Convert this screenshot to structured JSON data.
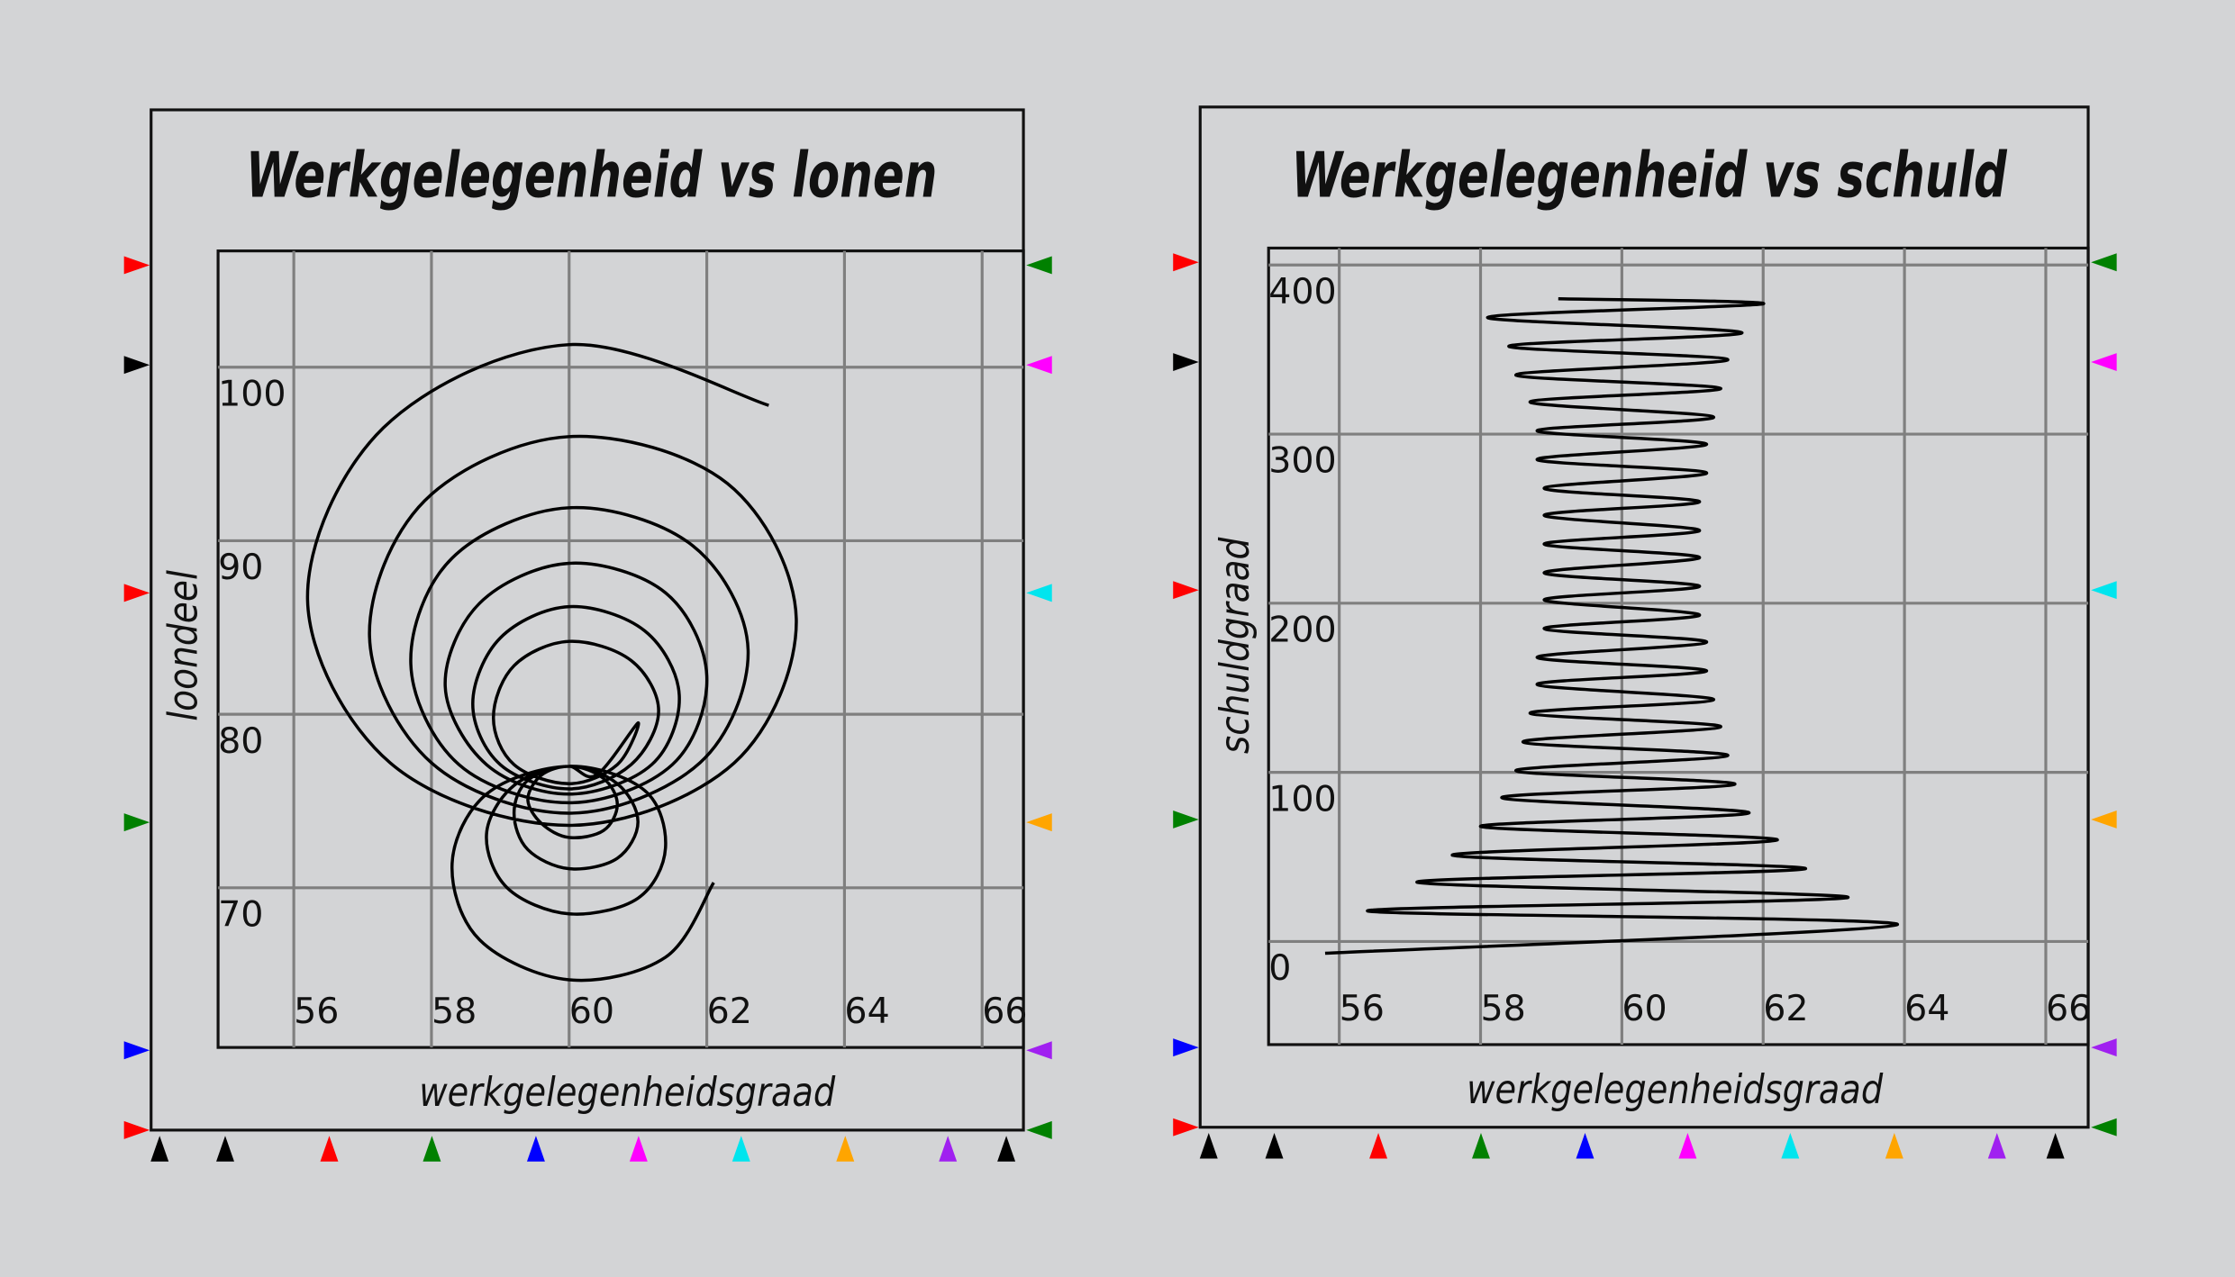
{
  "chart_data": [
    {
      "type": "line",
      "title": "Werkgelegenheid vs lonen",
      "xlabel": "werkgelegenheidsgraad",
      "ylabel": "loondeel",
      "x": [
        62.9,
        60,
        57.3,
        56.2,
        57.4,
        60,
        62.4,
        63.3,
        62.3,
        60,
        57.9,
        57.1,
        58.0,
        60,
        61.9,
        62.6,
        61.8,
        60,
        58.3,
        57.7,
        58.4,
        60,
        61.5,
        62.0,
        61.4,
        60,
        58.7,
        58.2,
        58.8,
        60,
        61.2,
        61.6,
        61.1,
        60,
        59.0,
        58.6,
        59.0,
        60,
        60.9,
        61.3,
        60.9,
        60,
        59.2,
        58.9,
        59.2,
        60,
        60.7,
        61.0,
        60.4,
        60,
        59.6,
        59.4,
        59.6,
        60,
        60.5,
        60.7,
        60.5,
        60,
        59.4,
        59.2,
        59.4,
        60,
        60.7,
        61.0,
        60.7,
        60,
        59.2,
        58.8,
        59.1,
        60,
        61.0,
        61.4,
        61.1,
        60,
        58.8,
        58.3,
        58.7,
        60,
        61.4,
        62.1
      ],
      "series": [
        {
          "color": "#000000",
          "values": [
            97.8,
            101.3,
            96.5,
            86.6,
            77.2,
            73.6,
            77.2,
            85.5,
            93.3,
            96.0,
            92.3,
            84.5,
            77.2,
            74.3,
            77.2,
            83.7,
            89.7,
            91.9,
            89.0,
            82.9,
            77.1,
            74.9,
            77.1,
            82.2,
            87.0,
            88.7,
            86.4,
            81.6,
            77.1,
            75.4,
            77.1,
            81.1,
            84.8,
            86.2,
            84.4,
            80.6,
            77.1,
            75.7,
            77.1,
            80.2,
            83.1,
            84.2,
            82.8,
            79.8,
            77.1,
            76.0,
            77.1,
            79.5,
            76.5,
            77.0,
            76.5,
            75.1,
            73.7,
            72.9,
            73.3,
            74.8,
            76.3,
            77.0,
            76.2,
            74.3,
            72.2,
            71.1,
            71.7,
            73.8,
            76.0,
            77.0,
            75.9,
            73.1,
            70.0,
            68.5,
            69.4,
            72.3,
            75.6,
            77.0,
            75.4,
            71.4,
            67.0,
            64.7,
            66.0,
            70.3
          ]
        }
      ],
      "xlim": [
        54.9,
        66.6
      ],
      "ylim": [
        60.8,
        106.7
      ],
      "xticks": [
        56,
        58,
        60,
        62,
        64,
        66
      ],
      "yticks": [
        70,
        80,
        90,
        100
      ],
      "grid": true
    },
    {
      "type": "line",
      "title": "Werkgelegenheid vs schuld",
      "xlabel": "werkgelegenheidsgraad",
      "ylabel": "schuldgraad",
      "x": [
        59.1,
        62.0,
        58.1,
        61.7,
        58.4,
        61.5,
        58.5,
        61.4,
        58.7,
        61.3,
        58.8,
        61.2,
        58.8,
        61.2,
        58.9,
        61.1,
        58.9,
        61.1,
        58.9,
        61.1,
        58.9,
        61.1,
        58.9,
        61.1,
        58.9,
        61.2,
        58.8,
        61.2,
        58.8,
        61.3,
        58.7,
        61.4,
        58.6,
        61.5,
        58.5,
        61.6,
        58.3,
        61.8,
        58.0,
        62.2,
        57.6,
        62.6,
        57.1,
        63.2,
        56.4,
        63.9,
        55.8
      ],
      "series": [
        {
          "color": "#000000",
          "values": [
            380,
            377,
            369,
            360,
            352,
            344,
            335,
            327,
            319,
            310,
            302,
            294,
            285,
            277,
            268,
            260,
            252,
            243,
            235,
            227,
            218,
            210,
            202,
            193,
            185,
            177,
            168,
            160,
            152,
            143,
            135,
            127,
            118,
            110,
            101,
            93,
            85,
            76,
            68,
            60,
            51,
            43,
            35,
            26,
            18,
            10,
            -7
          ]
        }
      ],
      "xlim": [
        55.0,
        66.6
      ],
      "ylim": [
        -61,
        410
      ],
      "xticks": [
        56,
        58,
        60,
        62,
        64,
        66
      ],
      "yticks": [
        0,
        100,
        200,
        300,
        400
      ],
      "grid": true
    }
  ]
}
